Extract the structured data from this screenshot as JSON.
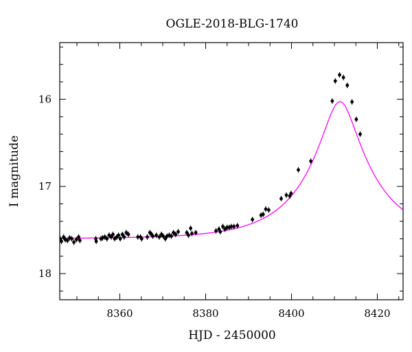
{
  "chart_data": {
    "type": "scatter",
    "title": "OGLE-2018-BLG-1740",
    "xlabel": "HJD - 2450000",
    "ylabel": "I magnitude",
    "xlim": [
      8346,
      8426
    ],
    "ylim": [
      18.3,
      15.35
    ],
    "y_inverted": true,
    "grid": false,
    "x_ticks_major": [
      8360,
      8380,
      8400,
      8420
    ],
    "x_tick_labels": [
      "8360",
      "8380",
      "8400",
      "8420"
    ],
    "y_ticks_major": [
      16,
      17,
      18
    ],
    "y_tick_labels": [
      "16",
      "17",
      "18"
    ],
    "colors": {
      "points": "#000000",
      "model": "#ff00ff",
      "axes": "#000000"
    },
    "series": [
      {
        "kind": "points",
        "points": [
          [
            8346.1,
            17.6
          ],
          [
            8346.4,
            17.63
          ],
          [
            8346.9,
            17.58
          ],
          [
            8347.3,
            17.61
          ],
          [
            8347.8,
            17.62
          ],
          [
            8348.3,
            17.59
          ],
          [
            8348.8,
            17.6
          ],
          [
            8349.3,
            17.64
          ],
          [
            8349.9,
            17.61
          ],
          [
            8350.4,
            17.58
          ],
          [
            8350.7,
            17.62
          ],
          [
            8354.4,
            17.6
          ],
          [
            8354.5,
            17.63
          ],
          [
            8355.6,
            17.6
          ],
          [
            8356.0,
            17.59
          ],
          [
            8356.5,
            17.58
          ],
          [
            8357.0,
            17.6
          ],
          [
            8357.5,
            17.56
          ],
          [
            8358.0,
            17.58
          ],
          [
            8358.4,
            17.55
          ],
          [
            8358.8,
            17.6
          ],
          [
            8359.3,
            17.58
          ],
          [
            8359.7,
            17.56
          ],
          [
            8360.1,
            17.6
          ],
          [
            8360.6,
            17.55
          ],
          [
            8361.0,
            17.58
          ],
          [
            8361.5,
            17.53
          ],
          [
            8362.0,
            17.55
          ],
          [
            8364.2,
            17.58
          ],
          [
            8364.8,
            17.58
          ],
          [
            8365.1,
            17.6
          ],
          [
            8366.4,
            17.58
          ],
          [
            8367.0,
            17.53
          ],
          [
            8367.4,
            17.55
          ],
          [
            8367.7,
            17.57
          ],
          [
            8368.5,
            17.56
          ],
          [
            8369.2,
            17.58
          ],
          [
            8369.7,
            17.55
          ],
          [
            8370.1,
            17.57
          ],
          [
            8370.6,
            17.6
          ],
          [
            8371.0,
            17.57
          ],
          [
            8371.5,
            17.56
          ],
          [
            8372.0,
            17.57
          ],
          [
            8372.5,
            17.53
          ],
          [
            8373.0,
            17.55
          ],
          [
            8373.6,
            17.52
          ],
          [
            8375.6,
            17.53
          ],
          [
            8376.0,
            17.56
          ],
          [
            8376.5,
            17.48
          ],
          [
            8376.8,
            17.54
          ],
          [
            8377.7,
            17.53
          ],
          [
            8382.4,
            17.51
          ],
          [
            8383.1,
            17.49
          ],
          [
            8383.4,
            17.52
          ],
          [
            8384.0,
            17.46
          ],
          [
            8384.5,
            17.49
          ],
          [
            8385.0,
            17.47
          ],
          [
            8385.5,
            17.47
          ],
          [
            8386.0,
            17.46
          ],
          [
            8386.6,
            17.46
          ],
          [
            8387.4,
            17.45
          ],
          [
            8390.9,
            17.38
          ],
          [
            8392.9,
            17.33
          ],
          [
            8393.4,
            17.32
          ],
          [
            8394.0,
            17.26
          ],
          [
            8394.7,
            17.27
          ],
          [
            8397.6,
            17.14
          ],
          [
            8398.8,
            17.1
          ],
          [
            8399.6,
            17.11
          ],
          [
            8399.9,
            17.08
          ],
          [
            8401.6,
            16.81
          ],
          [
            8404.5,
            16.71
          ],
          [
            8409.5,
            16.02
          ],
          [
            8410.2,
            15.79
          ],
          [
            8411.2,
            15.72
          ],
          [
            8412.1,
            15.75
          ],
          [
            8413.0,
            15.84
          ],
          [
            8414.1,
            16.03
          ],
          [
            8415.1,
            16.23
          ],
          [
            8416.0,
            16.4
          ]
        ]
      },
      {
        "kind": "model-curve",
        "baseline_mag": 17.6,
        "t0": 8411.3,
        "u0": 0.24,
        "tE": 15.5
      }
    ]
  }
}
